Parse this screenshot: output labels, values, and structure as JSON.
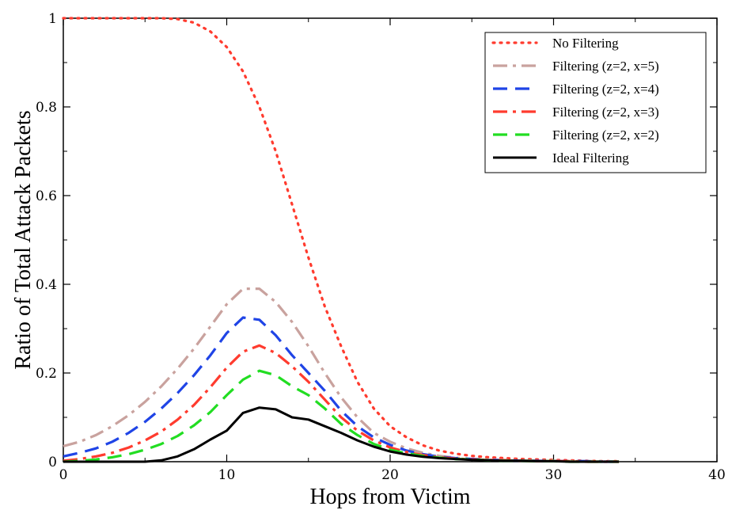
{
  "chart_data": {
    "type": "line",
    "title": "",
    "xlabel": "Hops from Victim",
    "ylabel": "Ratio of Total Attack Packets",
    "xlim": [
      0,
      40
    ],
    "ylim": [
      0,
      1
    ],
    "xticks": [
      0,
      10,
      20,
      30,
      40
    ],
    "yticks": [
      0,
      0.2,
      0.4,
      0.6,
      0.8,
      1
    ],
    "xtick_labels": [
      "0",
      "10",
      "20",
      "30",
      "40"
    ],
    "ytick_labels": [
      "0",
      "0.2",
      "0.4",
      "0.6",
      "0.8",
      "1"
    ],
    "grid": false,
    "legend_position": "top-right",
    "x": [
      0,
      1,
      2,
      3,
      4,
      5,
      6,
      7,
      8,
      9,
      10,
      11,
      12,
      13,
      14,
      15,
      16,
      17,
      18,
      19,
      20,
      21,
      22,
      23,
      24,
      25,
      26,
      27,
      28,
      29,
      30,
      31,
      32,
      33,
      34
    ],
    "series": [
      {
        "name": "No Filtering",
        "color": "#ff3b2e",
        "style": "dotted",
        "values": [
          1,
          1,
          1,
          1,
          1,
          1,
          1,
          0.998,
          0.99,
          0.97,
          0.935,
          0.88,
          0.8,
          0.7,
          0.58,
          0.46,
          0.35,
          0.26,
          0.18,
          0.12,
          0.08,
          0.055,
          0.037,
          0.025,
          0.018,
          0.013,
          0.01,
          0.008,
          0.006,
          0.005,
          0.004,
          0.003,
          0.002,
          0.001,
          0.001
        ]
      },
      {
        "name": "Filtering (z=2, x=5)",
        "color": "#c9a29e",
        "style": "dashdot",
        "values": [
          0.035,
          0.045,
          0.06,
          0.08,
          0.105,
          0.135,
          0.17,
          0.21,
          0.255,
          0.305,
          0.355,
          0.39,
          0.39,
          0.36,
          0.315,
          0.26,
          0.2,
          0.145,
          0.1,
          0.065,
          0.045,
          0.03,
          0.02,
          0.013,
          0.009,
          0.006,
          0.005,
          0.004,
          0.003,
          0.002,
          0.002,
          0.001,
          0.001,
          0.001,
          0
        ]
      },
      {
        "name": "Filtering (z=2, x=4)",
        "color": "#1f44e6",
        "style": "dashed",
        "values": [
          0.012,
          0.02,
          0.03,
          0.045,
          0.065,
          0.09,
          0.12,
          0.155,
          0.195,
          0.24,
          0.29,
          0.325,
          0.32,
          0.285,
          0.24,
          0.2,
          0.16,
          0.115,
          0.08,
          0.055,
          0.038,
          0.025,
          0.017,
          0.011,
          0.008,
          0.006,
          0.004,
          0.003,
          0.002,
          0.002,
          0.001,
          0.001,
          0.001,
          0,
          0
        ]
      },
      {
        "name": "Filtering (z=2, x=3)",
        "color": "#ff3b2e",
        "style": "dashdot",
        "values": [
          0.002,
          0.006,
          0.012,
          0.02,
          0.032,
          0.048,
          0.068,
          0.095,
          0.128,
          0.168,
          0.212,
          0.248,
          0.262,
          0.245,
          0.215,
          0.18,
          0.14,
          0.1,
          0.07,
          0.048,
          0.032,
          0.022,
          0.015,
          0.01,
          0.007,
          0.005,
          0.004,
          0.003,
          0.002,
          0.001,
          0.001,
          0.001,
          0,
          0,
          0
        ]
      },
      {
        "name": "Filtering (z=2, x=2)",
        "color": "#22dd22",
        "style": "dashed",
        "values": [
          0,
          0.002,
          0.005,
          0.01,
          0.017,
          0.027,
          0.04,
          0.058,
          0.082,
          0.112,
          0.15,
          0.185,
          0.205,
          0.195,
          0.17,
          0.15,
          0.12,
          0.085,
          0.06,
          0.04,
          0.027,
          0.019,
          0.013,
          0.009,
          0.006,
          0.005,
          0.003,
          0.002,
          0.002,
          0.001,
          0.001,
          0,
          0,
          0,
          0
        ]
      },
      {
        "name": "Ideal Filtering",
        "color": "#000000",
        "style": "solid",
        "values": [
          0,
          0,
          0,
          0,
          0,
          0,
          0.003,
          0.012,
          0.028,
          0.05,
          0.07,
          0.11,
          0.122,
          0.118,
          0.1,
          0.095,
          0.08,
          0.065,
          0.048,
          0.034,
          0.023,
          0.016,
          0.011,
          0.008,
          0.006,
          0.004,
          0.003,
          0.002,
          0.002,
          0.001,
          0.001,
          0,
          0,
          0,
          0
        ]
      }
    ]
  }
}
